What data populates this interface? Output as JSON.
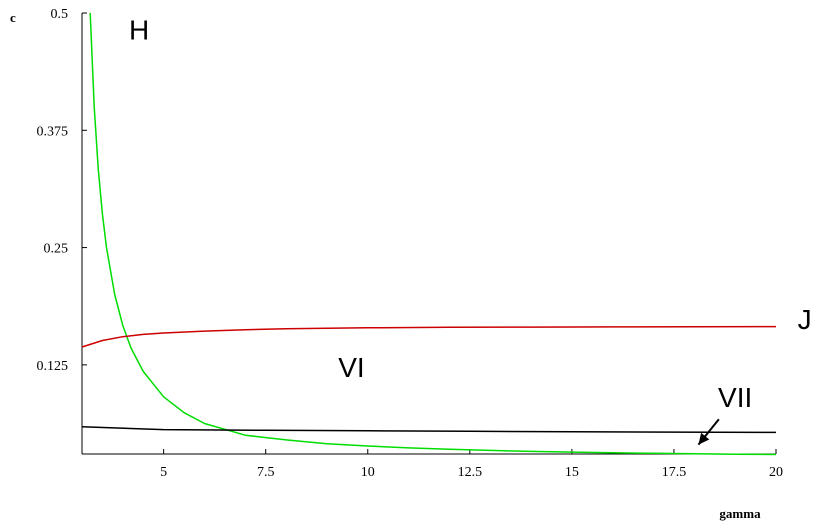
{
  "chart_data": {
    "type": "line",
    "xlabel": "gamma",
    "ylabel": "c",
    "xlim": [
      3,
      20
    ],
    "ylim": [
      0.03,
      0.5
    ],
    "xticks": [
      5,
      7.5,
      10,
      12.5,
      15,
      17.5,
      20
    ],
    "xtick_labels": [
      "5",
      "7.5",
      "10",
      "12.5",
      "15",
      "17.5",
      "20"
    ],
    "yticks": [
      0.125,
      0.25,
      0.375,
      0.5
    ],
    "ytick_labels": [
      "0.125",
      "0.25",
      "0.375",
      "0.5"
    ],
    "grid": false,
    "series": [
      {
        "color": "#00dd00",
        "x": [
          3.2,
          3.3,
          3.4,
          3.5,
          3.6,
          3.8,
          4.0,
          4.2,
          4.5,
          5.0,
          5.5,
          6.0,
          7.0,
          8.0,
          9.0,
          10.0,
          11.0,
          12.0,
          13.0,
          14.0,
          15.0,
          16.0,
          17.0,
          18.0,
          19.0,
          20.0
        ],
        "values": [
          0.5,
          0.4,
          0.333,
          0.286,
          0.25,
          0.2,
          0.167,
          0.143,
          0.118,
          0.091,
          0.074,
          0.0625,
          0.05,
          0.045,
          0.041,
          0.0385,
          0.0365,
          0.035,
          0.0338,
          0.0328,
          0.032,
          0.0313,
          0.0307,
          0.0302,
          0.0298,
          0.0295
        ]
      },
      {
        "color": "#cc0000",
        "x": [
          3.0,
          3.5,
          4.0,
          4.5,
          5.0,
          6.0,
          7.0,
          8.0,
          10.0,
          12.0,
          14.0,
          16.0,
          18.0,
          20.0
        ],
        "values": [
          0.144,
          0.151,
          0.155,
          0.1575,
          0.159,
          0.161,
          0.1625,
          0.1635,
          0.1645,
          0.165,
          0.1652,
          0.1655,
          0.1657,
          0.1658
        ]
      },
      {
        "color": "#000000",
        "x": [
          3.0,
          5.0,
          7.5,
          10.0,
          12.5,
          15.0,
          17.5,
          20.0
        ],
        "values": [
          0.059,
          0.056,
          0.0553,
          0.0547,
          0.0542,
          0.0537,
          0.0533,
          0.053
        ]
      }
    ],
    "annotations": [
      {
        "text": "H",
        "x": 4.4,
        "y": 0.472
      },
      {
        "text": "J",
        "x": 20.7,
        "y": 0.163
      },
      {
        "text": "VI",
        "x": 9.6,
        "y": 0.112
      },
      {
        "text": "VII",
        "x": 19.0,
        "y": 0.08
      }
    ],
    "arrow": {
      "from": [
        18.6,
        0.067
      ],
      "to": [
        18.1,
        0.04
      ]
    }
  }
}
